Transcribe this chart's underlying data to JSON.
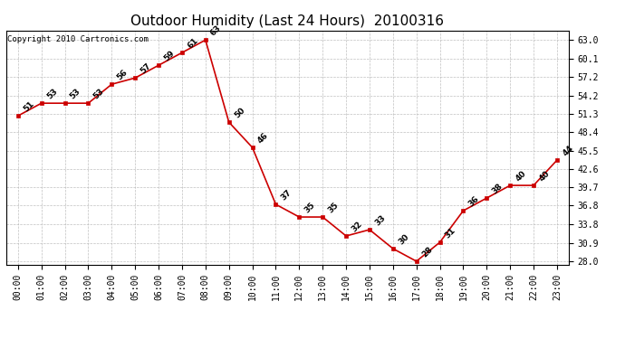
{
  "title": "Outdoor Humidity (Last 24 Hours)  20100316",
  "copyright_text": "Copyright 2010 Cartronics.com",
  "x_labels": [
    "00:00",
    "01:00",
    "02:00",
    "03:00",
    "04:00",
    "05:00",
    "06:00",
    "07:00",
    "08:00",
    "09:00",
    "10:00",
    "11:00",
    "12:00",
    "13:00",
    "14:00",
    "15:00",
    "16:00",
    "17:00",
    "18:00",
    "19:00",
    "20:00",
    "21:00",
    "22:00",
    "23:00"
  ],
  "y_values": [
    51,
    53,
    53,
    53,
    56,
    57,
    59,
    61,
    63,
    50,
    46,
    37,
    35,
    35,
    32,
    33,
    30,
    28,
    31,
    36,
    38,
    40,
    40,
    44
  ],
  "y_ticks": [
    28.0,
    30.9,
    33.8,
    36.8,
    39.7,
    42.6,
    45.5,
    48.4,
    51.3,
    54.2,
    57.2,
    60.1,
    63.0
  ],
  "line_color": "#cc0000",
  "marker_color": "#cc0000",
  "bg_color": "#ffffff",
  "grid_color": "#b0b0b0",
  "title_fontsize": 11,
  "label_fontsize": 7,
  "annotation_fontsize": 6.5,
  "copyright_fontsize": 6.5,
  "ylim": [
    27.5,
    64.5
  ]
}
